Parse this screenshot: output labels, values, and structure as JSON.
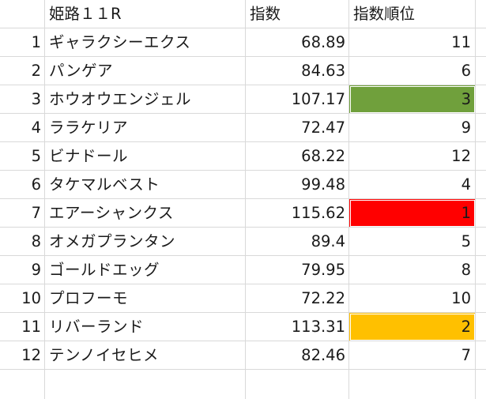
{
  "header": {
    "race": "姫路１１R",
    "index": "指数",
    "rank": "指数順位"
  },
  "rows": [
    {
      "no": "1",
      "name": "ギャラクシーエクス",
      "index": "68.89",
      "rank": "11",
      "fill": ""
    },
    {
      "no": "2",
      "name": "パンゲア",
      "index": "84.63",
      "rank": "6",
      "fill": ""
    },
    {
      "no": "3",
      "name": "ホウオウエンジェル",
      "index": "107.17",
      "rank": "3",
      "fill": "#70a03c"
    },
    {
      "no": "4",
      "name": "ララケリア",
      "index": "72.47",
      "rank": "9",
      "fill": ""
    },
    {
      "no": "5",
      "name": "ビナドール",
      "index": "68.22",
      "rank": "12",
      "fill": ""
    },
    {
      "no": "6",
      "name": "タケマルベスト",
      "index": "99.48",
      "rank": "4",
      "fill": ""
    },
    {
      "no": "7",
      "name": "エアーシャンクス",
      "index": "115.62",
      "rank": "1",
      "fill": "#ff0000"
    },
    {
      "no": "8",
      "name": "オメガプランタン",
      "index": "89.4",
      "rank": "5",
      "fill": ""
    },
    {
      "no": "9",
      "name": "ゴールドエッグ",
      "index": "79.95",
      "rank": "8",
      "fill": ""
    },
    {
      "no": "10",
      "name": "プロフーモ",
      "index": "72.22",
      "rank": "10",
      "fill": ""
    },
    {
      "no": "11",
      "name": "リバーランド",
      "index": "113.31",
      "rank": "2",
      "fill": "#ffc000"
    },
    {
      "no": "12",
      "name": "テンノイセヒメ",
      "index": "82.46",
      "rank": "7",
      "fill": ""
    }
  ],
  "colors": {
    "gridline": "#d9d9d9",
    "rank1": "#ff0000",
    "rank2": "#ffc000",
    "rank3": "#70a03c"
  }
}
